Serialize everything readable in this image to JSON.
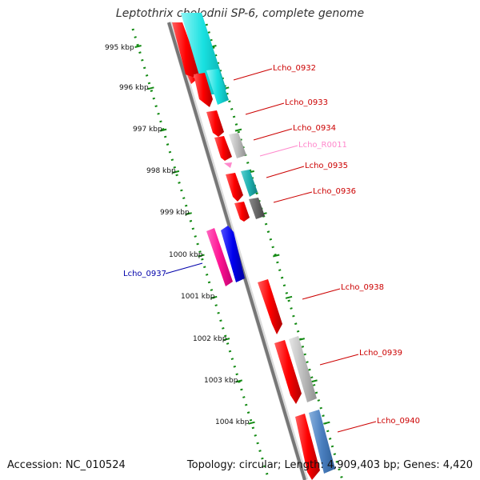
{
  "title": "Leptothrix cholodnii SP-6, complete genome",
  "footer": {
    "accession": "Accession: NC_010524",
    "summary": "Topology: circular; Length: 4,909,403 bp; Genes: 4,420"
  },
  "colors": {
    "backbone": "#777777",
    "ruler": "#138a13",
    "gene_forward": "#ff0000",
    "gene_reverse": "#ff0000",
    "cds_cyan": "#22d8d8",
    "cds_grey": "#b8b8b8",
    "rna_pink": "#ff88cc",
    "label_red": "#cc0000",
    "label_blue": "#0000aa"
  },
  "scale": {
    "kbp_marks": [
      "995 kbp",
      "996 kbp",
      "997 kbp",
      "998 kbp",
      "999 kbp",
      "1000 kbp",
      "1001 kbp",
      "1002 kbp",
      "1003 kbp",
      "1004 kbp"
    ]
  },
  "labels": [
    {
      "text": "Lcho_0932",
      "color": "#cc0000"
    },
    {
      "text": "Lcho_0933",
      "color": "#cc0000"
    },
    {
      "text": "Lcho_0934",
      "color": "#cc0000"
    },
    {
      "text": "Lcho_R0011",
      "color": "#ff88cc"
    },
    {
      "text": "Lcho_0935",
      "color": "#cc0000"
    },
    {
      "text": "Lcho_0936",
      "color": "#cc0000"
    },
    {
      "text": "Lcho_0937",
      "color": "#0000aa"
    },
    {
      "text": "Lcho_0938",
      "color": "#cc0000"
    },
    {
      "text": "Lcho_0939",
      "color": "#cc0000"
    },
    {
      "text": "Lcho_0940",
      "color": "#cc0000"
    }
  ]
}
